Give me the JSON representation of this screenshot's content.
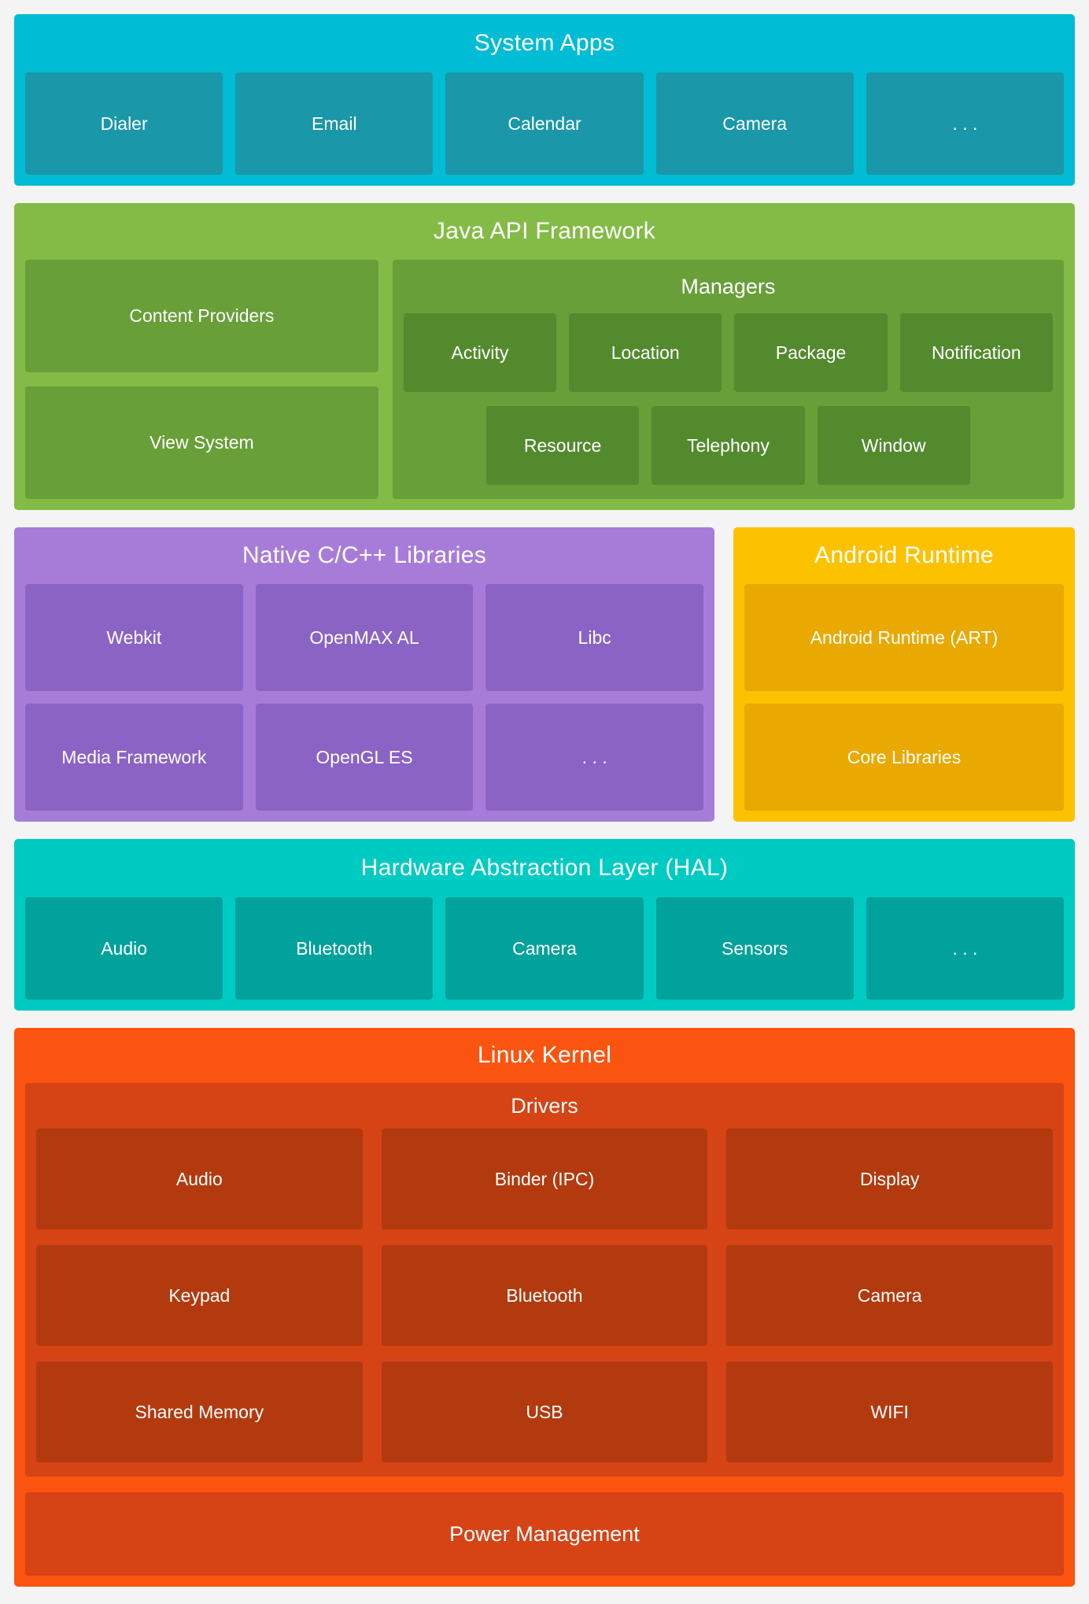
{
  "system_apps": {
    "title": "System Apps",
    "items": [
      "Dialer",
      "Email",
      "Calendar",
      "Camera",
      ". . ."
    ]
  },
  "java_framework": {
    "title": "Java API Framework",
    "left_items": [
      "Content Providers",
      "View System"
    ],
    "managers": {
      "title": "Managers",
      "row1": [
        "Activity",
        "Location",
        "Package",
        "Notification"
      ],
      "row2": [
        "Resource",
        "Telephony",
        "Window"
      ]
    }
  },
  "native_libraries": {
    "title": "Native C/C++ Libraries",
    "row1": [
      "Webkit",
      "OpenMAX AL",
      "Libc"
    ],
    "row2": [
      "Media Framework",
      "OpenGL ES",
      ". . ."
    ]
  },
  "android_runtime": {
    "title": "Android Runtime",
    "items": [
      "Android Runtime (ART)",
      "Core Libraries"
    ]
  },
  "hal": {
    "title": "Hardware Abstraction Layer (HAL)",
    "items": [
      "Audio",
      "Bluetooth",
      "Camera",
      "Sensors",
      ". . ."
    ]
  },
  "linux_kernel": {
    "title": "Linux Kernel",
    "drivers": {
      "title": "Drivers",
      "row1": [
        "Audio",
        "Binder (IPC)",
        "Display"
      ],
      "row2": [
        "Keypad",
        "Bluetooth",
        "Camera"
      ],
      "row3": [
        "Shared Memory",
        "USB",
        "WIFI"
      ]
    },
    "power": "Power Management"
  },
  "colors": {
    "page_bg": "#f4f4f4",
    "text": "#ffffff",
    "system_apps_bg": "#00bcd4",
    "system_apps_box": "#1a97a8",
    "java_bg": "#84bb47",
    "java_box": "#689f38",
    "java_box_dark": "#538a2e",
    "native_bg": "#a77cd9",
    "native_box": "#8a63c5",
    "runtime_bg": "#fcc200",
    "runtime_box": "#e9a900",
    "hal_bg": "#00cbc3",
    "hal_box": "#00a29b",
    "kernel_bg": "#fb5410",
    "kernel_mid": "#d64315",
    "kernel_box": "#b23a0e"
  }
}
